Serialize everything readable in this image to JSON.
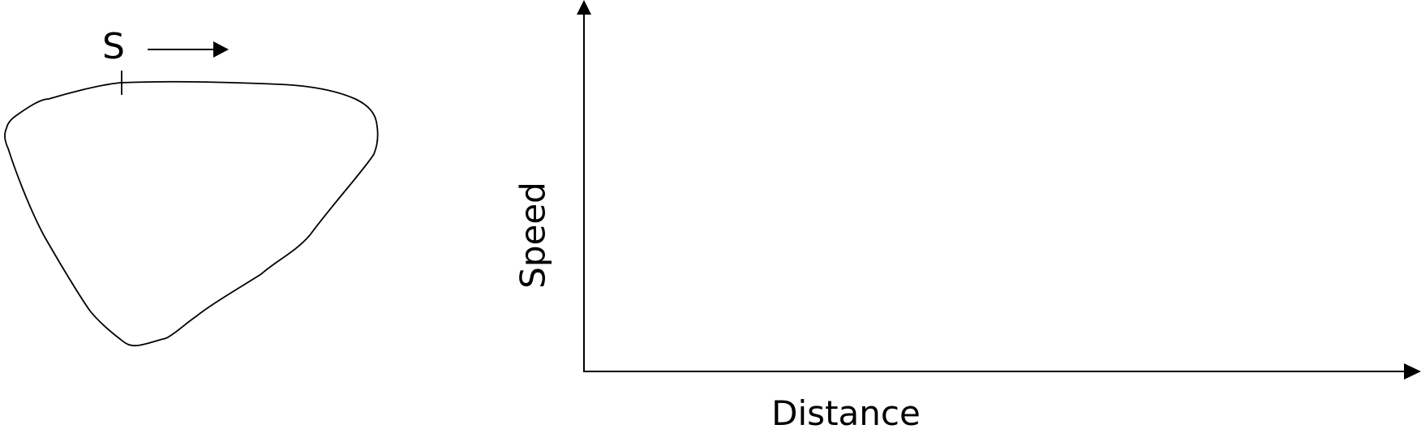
{
  "track": {
    "start_label": "S"
  },
  "graph": {
    "y_axis_label": "Speed",
    "x_axis_label": "Distance"
  }
}
